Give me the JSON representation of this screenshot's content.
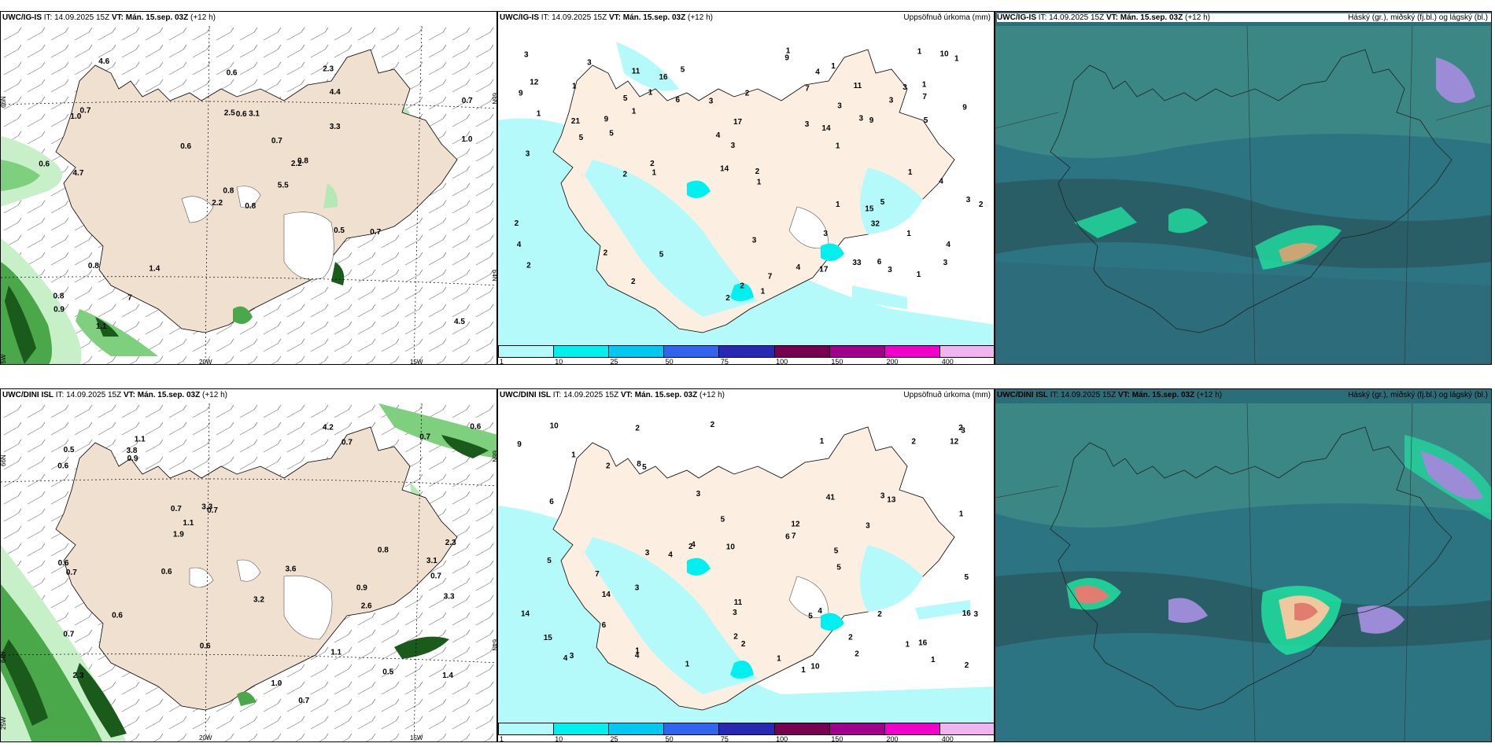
{
  "panels": {
    "p1": {
      "model": "UWC/IG-IS",
      "it": "IT: 14.09.2025 15Z",
      "vt": "VT: Mán. 15.sep. 03Z",
      "lead": "(+12 h)",
      "title": ""
    },
    "p2": {
      "model": "UWC/IG-IS",
      "it": "IT: 14.09.2025 15Z",
      "vt": "VT: Mán. 15.sep. 03Z",
      "lead": "(+12 h)",
      "title": "Uppsöfnuð úrkoma (mm)"
    },
    "p3": {
      "model": "UWC/IG-IS",
      "it": "IT: 14.09.2025 15Z",
      "vt": "VT: Mán. 15.sep. 03Z",
      "lead": "(+12 h)",
      "title": "Háský (gr.), miðský (fj.bl.) og lágský (bl.)"
    },
    "p4": {
      "model": "UWC/DINI ISL",
      "it": "IT: 14.09.2025 15Z",
      "vt": "VT: Mán. 15.sep. 03Z",
      "lead": "(+12 h)",
      "title": ""
    },
    "p5": {
      "model": "UWC/DINI ISL",
      "it": "IT: 14.09.2025 15Z",
      "vt": "VT: Mán. 15.sep. 03Z",
      "lead": "(+12 h)",
      "title": "Uppsöfnuð úrkoma (mm)"
    },
    "p6": {
      "model": "UWC/DINI ISL",
      "it": "IT: 14.09.2025 15Z",
      "vt": "VT: Mán. 15.sep. 03Z",
      "lead": "(+12 h)",
      "title": "Háský (gr.), miðský (fj.bl.) og lágský (bl.)"
    }
  },
  "axis_labels": {
    "lat66": "66N",
    "lat64": "64N",
    "lon25": "25W",
    "lon20": "20W",
    "lon15": "15W"
  },
  "colorbar": {
    "labels": [
      "1",
      "10",
      "25",
      "50",
      "75",
      "100",
      "150",
      "200",
      "400"
    ],
    "colors": [
      "#b4fafa",
      "#00f0f0",
      "#00c8f0",
      "#3264f0",
      "#2828b4",
      "#780050",
      "#a0008c",
      "#f000c8",
      "#f0b4f0"
    ]
  },
  "labels_p1": [
    "0.8",
    "1.0",
    "0.8",
    "0.8",
    "2.2",
    "1.4",
    "2.3",
    "3.1",
    "4.4",
    "5.5",
    "4.6",
    "4.5",
    "4.7",
    "0.7",
    "2.2",
    "3.3",
    "1.1",
    "2.5",
    "0.7",
    "0.8",
    "0.6",
    "0.9",
    "7",
    "0.6",
    "0.8",
    "0.7",
    "0.7",
    "0.6",
    "0.6",
    "0.5",
    "1.0"
  ],
  "labels_p4": [
    "0.9",
    "0.7",
    "2.3",
    "1.1",
    "0.7",
    "0.5",
    "0.7",
    "0.7",
    "0.7",
    "0.7",
    "0.6",
    "0.6",
    "0.5",
    "1.4",
    "0.6",
    "2.3",
    "3.2",
    "3.6",
    "3.3",
    "0.6",
    "0.6",
    "0.7",
    "1.9",
    "3.3",
    "4.2",
    "3.8",
    "2.6",
    "0.7",
    "0.9",
    "0.8",
    "1.0",
    "1.1",
    "1.1",
    "0.6",
    "3.1"
  ],
  "labels_p2": [
    "1",
    "1",
    "1",
    "2",
    "3",
    "2",
    "1",
    "1",
    "1",
    "2",
    "3",
    "1",
    "3",
    "2",
    "3",
    "2",
    "2",
    "3",
    "1",
    "4",
    "3",
    "4",
    "3",
    "3",
    "11",
    "5",
    "7",
    "4",
    "3",
    "2",
    "2",
    "17",
    "10",
    "21",
    "12",
    "11",
    "6",
    "7",
    "9",
    "4",
    "9",
    "5",
    "4",
    "6",
    "7",
    "9",
    "9",
    "1",
    "4",
    "5",
    "17",
    "14",
    "14",
    "15",
    "2",
    "16",
    "2",
    "32",
    "33",
    "3",
    "3",
    "3",
    "5",
    "1",
    "1",
    "1",
    "1",
    "1",
    "3",
    "1",
    "2",
    "3",
    "5",
    "3",
    "5",
    "9",
    "5",
    "1",
    "1"
  ],
  "labels_p5": [
    "1",
    "1",
    "1",
    "2",
    "2",
    "1",
    "3",
    "1",
    "2",
    "3",
    "2",
    "2",
    "4",
    "3",
    "1",
    "6",
    "6",
    "4",
    "4",
    "9",
    "5",
    "3",
    "12",
    "4",
    "13",
    "7",
    "14",
    "14",
    "10",
    "5",
    "10",
    "10",
    "11",
    "12",
    "6",
    "5",
    "16",
    "15",
    "41",
    "16",
    "7",
    "3",
    "3",
    "3",
    "5",
    "4",
    "5",
    "1",
    "2",
    "2",
    "2",
    "1",
    "2",
    "2",
    "3",
    "3",
    "2",
    "5",
    "8",
    "5",
    "1",
    "2"
  ]
}
